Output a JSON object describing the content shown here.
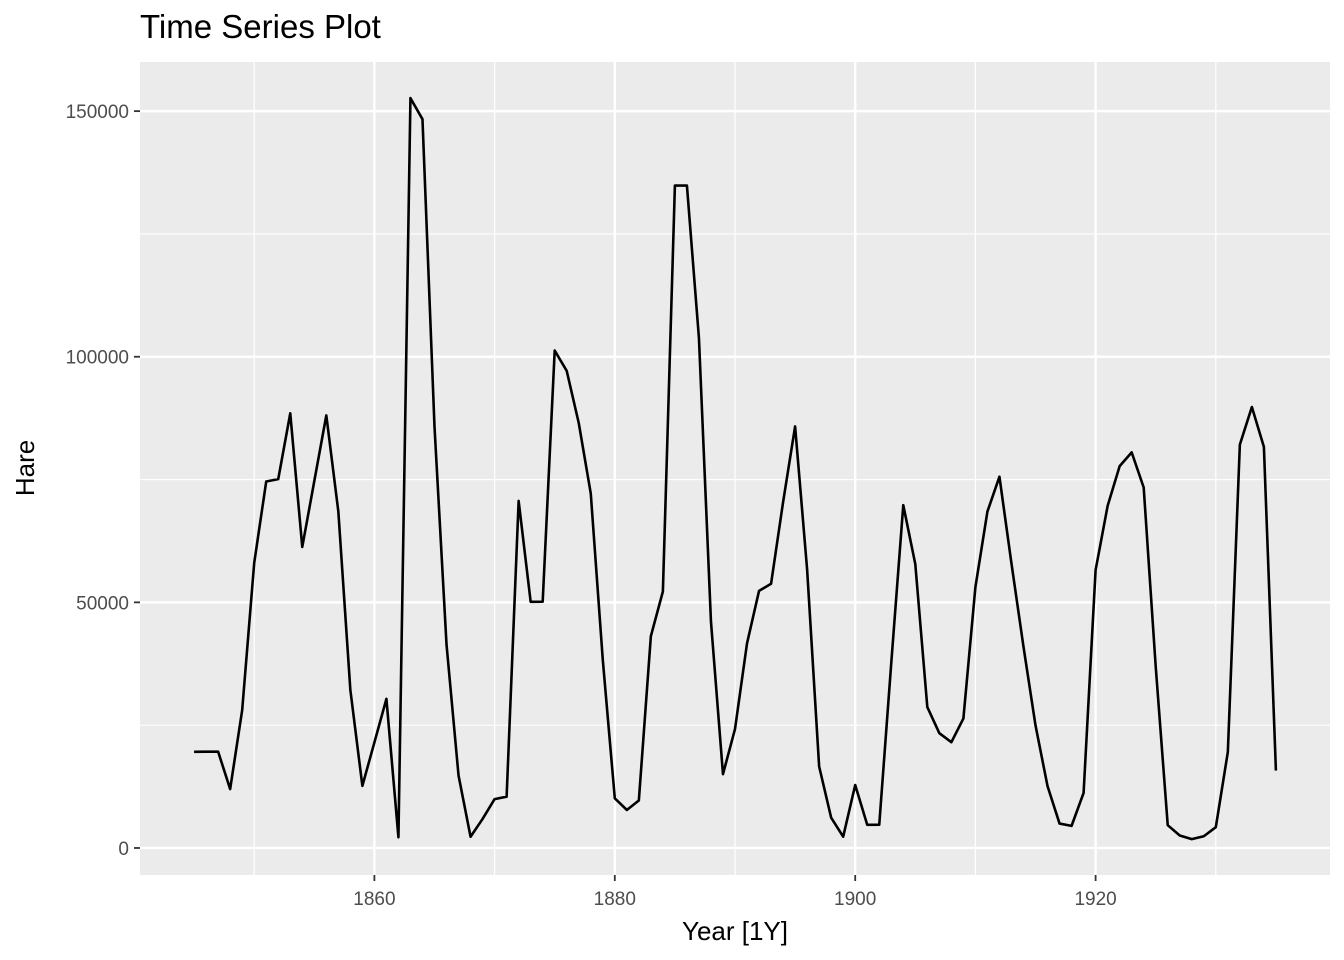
{
  "chart_data": {
    "type": "line",
    "title": "Time Series Plot",
    "xlabel": "Year [1Y]",
    "ylabel": "Hare",
    "xlim": [
      1840.5,
      1939.5
    ],
    "ylim": [
      -5500,
      160000
    ],
    "x_ticks": [
      1860,
      1880,
      1900,
      1920
    ],
    "x_tick_labels": [
      "1860",
      "1880",
      "1900",
      "1920"
    ],
    "y_ticks": [
      0,
      50000,
      100000,
      150000
    ],
    "y_tick_labels": [
      "0",
      "50000",
      "100000",
      "150000"
    ],
    "grid": true,
    "series": [
      {
        "x": [
          1845,
          1846,
          1847,
          1848,
          1849,
          1850,
          1851,
          1852,
          1853,
          1854,
          1855,
          1856,
          1857,
          1858,
          1859,
          1860,
          1861,
          1862,
          1863,
          1864,
          1865,
          1866,
          1867,
          1868,
          1869,
          1870,
          1871,
          1872,
          1873,
          1874,
          1875,
          1876,
          1877,
          1878,
          1879,
          1880,
          1881,
          1882,
          1883,
          1884,
          1885,
          1886,
          1887,
          1888,
          1889,
          1890,
          1891,
          1892,
          1893,
          1894,
          1895,
          1896,
          1897,
          1898,
          1899,
          1900,
          1901,
          1902,
          1903,
          1904,
          1905,
          1906,
          1907,
          1908,
          1909,
          1910,
          1911,
          1912,
          1913,
          1914,
          1915,
          1916,
          1917,
          1918,
          1919,
          1920,
          1921,
          1922,
          1923,
          1924,
          1925,
          1926,
          1927,
          1928,
          1929,
          1930,
          1931,
          1932,
          1933,
          1934,
          1935
        ],
        "y": [
          19580,
          19600,
          19610,
          11990,
          28040,
          58000,
          74600,
          75090,
          88480,
          61280,
          74670,
          88060,
          68510,
          32190,
          12640,
          21490,
          30350,
          2180,
          152650,
          148360,
          85810,
          41410,
          14750,
          2280,
          5910,
          9950,
          10440,
          70640,
          50120,
          50130,
          101250,
          97120,
          86510,
          72170,
          38320,
          10110,
          7740,
          9670,
          43120,
          52210,
          134850,
          134860,
          103790,
          46100,
          15030,
          24200,
          41650,
          52340,
          53780,
          70400,
          85810,
          56690,
          16590,
          6160,
          2300,
          12820,
          4720,
          4730,
          37650,
          69790,
          57780,
          28680,
          23370,
          21540,
          26340,
          53100,
          68480,
          75580,
          57920,
          40970,
          24950,
          12590,
          4970,
          4500,
          11210,
          56600,
          69630,
          77740,
          80530,
          73380,
          36930,
          4640,
          2540,
          1800,
          2390,
          4230,
          19520,
          82110,
          89760,
          81660,
          15760
        ]
      }
    ]
  }
}
